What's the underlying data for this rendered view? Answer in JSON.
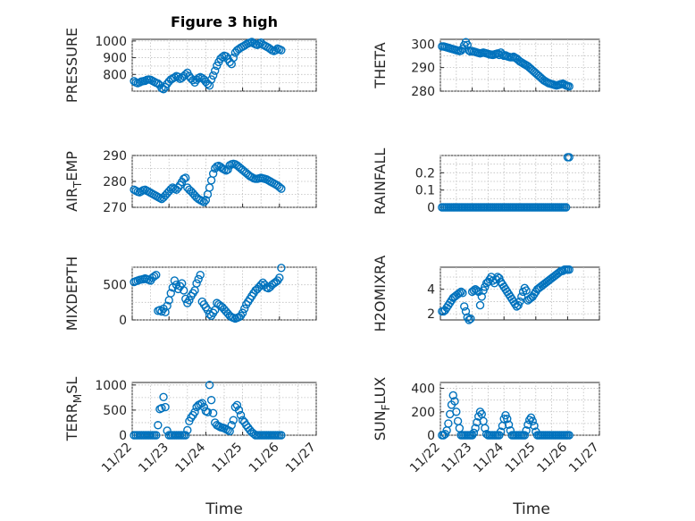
{
  "figure": {
    "title": "Figure 3 high"
  },
  "style": {
    "marker_color": "#0072BD",
    "axis_color": "#262626",
    "grid_color": "#bfbfbf"
  },
  "x_axis": {
    "label": "Time",
    "ticks": [
      0,
      1,
      2,
      3,
      4,
      5
    ],
    "tick_labels": [
      "11/22",
      "11/23",
      "11/24",
      "11/25",
      "11/26",
      "11/27"
    ],
    "range": [
      0,
      5
    ],
    "note_units": "days since 11/22"
  },
  "chart_data": [
    {
      "type": "scatter",
      "marker": "circle",
      "grid": true,
      "ylabel": "PRESSURE",
      "ylim": [
        700,
        1010
      ],
      "yticks": [
        800,
        900,
        1000
      ],
      "x": [
        0.05,
        0.1,
        0.15,
        0.2,
        0.25,
        0.3,
        0.35,
        0.4,
        0.45,
        0.5,
        0.55,
        0.6,
        0.65,
        0.7,
        0.75,
        0.8,
        0.85,
        0.9,
        0.95,
        1.0,
        1.05,
        1.1,
        1.15,
        1.2,
        1.25,
        1.3,
        1.35,
        1.4,
        1.45,
        1.5,
        1.55,
        1.6,
        1.65,
        1.7,
        1.75,
        1.8,
        1.85,
        1.9,
        1.95,
        2.0,
        2.05,
        2.1,
        2.15,
        2.2,
        2.25,
        2.3,
        2.35,
        2.4,
        2.45,
        2.5,
        2.55,
        2.6,
        2.65,
        2.7,
        2.75,
        2.8,
        2.85,
        2.9,
        2.95,
        3.0,
        3.05,
        3.1,
        3.15,
        3.2,
        3.25,
        3.3,
        3.35,
        3.4,
        3.45,
        3.5,
        3.55,
        3.6,
        3.65,
        3.7,
        3.75,
        3.8,
        3.85,
        3.9,
        3.95,
        4.0,
        4.05
      ],
      "y": [
        760,
        752,
        748,
        752,
        758,
        760,
        762,
        768,
        770,
        768,
        762,
        756,
        750,
        746,
        736,
        718,
        712,
        724,
        744,
        758,
        770,
        776,
        782,
        790,
        786,
        774,
        780,
        790,
        800,
        810,
        790,
        776,
        766,
        752,
        768,
        778,
        784,
        778,
        770,
        756,
        744,
        734,
        770,
        794,
        822,
        852,
        874,
        894,
        904,
        912,
        908,
        892,
        874,
        862,
        900,
        930,
        944,
        952,
        960,
        966,
        972,
        980,
        986,
        990,
        994,
        986,
        980,
        976,
        984,
        990,
        978,
        972,
        966,
        960,
        952,
        944,
        940,
        945,
        955,
        950,
        945
      ]
    },
    {
      "type": "scatter",
      "marker": "circle",
      "grid": true,
      "ylabel": "THETA",
      "ylim": [
        280,
        302
      ],
      "yticks": [
        280,
        290,
        300
      ],
      "x": [
        0.05,
        0.1,
        0.15,
        0.2,
        0.25,
        0.3,
        0.35,
        0.4,
        0.45,
        0.5,
        0.55,
        0.6,
        0.65,
        0.7,
        0.75,
        0.8,
        0.85,
        0.9,
        0.95,
        1.0,
        1.05,
        1.1,
        1.15,
        1.2,
        1.25,
        1.3,
        1.35,
        1.4,
        1.45,
        1.5,
        1.55,
        1.6,
        1.65,
        1.7,
        1.75,
        1.8,
        1.85,
        1.9,
        1.95,
        2.0,
        2.05,
        2.1,
        2.15,
        2.2,
        2.25,
        2.3,
        2.35,
        2.4,
        2.45,
        2.5,
        2.55,
        2.6,
        2.65,
        2.7,
        2.75,
        2.8,
        2.85,
        2.9,
        2.95,
        3.0,
        3.05,
        3.1,
        3.15,
        3.2,
        3.25,
        3.3,
        3.35,
        3.4,
        3.45,
        3.5,
        3.55,
        3.6,
        3.65,
        3.7,
        3.75,
        3.8,
        3.85,
        3.9,
        3.95,
        4.0,
        4.05
      ],
      "y": [
        299,
        299,
        298.8,
        298.6,
        298.4,
        298.2,
        298,
        297.8,
        297.6,
        297.4,
        297.2,
        297,
        297.2,
        298,
        299.5,
        300.8,
        299.6,
        297.2,
        296.8,
        297,
        296.8,
        296.6,
        296.4,
        296.2,
        296,
        296.2,
        296.4,
        296.2,
        296,
        295.8,
        295.6,
        295.5,
        295.4,
        295.6,
        295.8,
        296,
        295.4,
        296.4,
        295.6,
        295,
        295.2,
        294.8,
        294.6,
        294.4,
        294.4,
        294.6,
        294.2,
        293.8,
        293.2,
        292.6,
        292.2,
        291.8,
        291.4,
        291,
        290.6,
        290,
        289.4,
        288.8,
        288.2,
        287.6,
        287,
        286.4,
        285.8,
        285.2,
        284.6,
        284.2,
        283.8,
        283.4,
        283.2,
        283,
        282.8,
        282.6,
        282.4,
        282.6,
        282.8,
        283,
        283.2,
        282.8,
        282.4,
        282.2,
        282
      ]
    },
    {
      "type": "scatter",
      "marker": "circle",
      "grid": true,
      "ylabel": "AIR_TEMP",
      "ylabel_main": "AIR",
      "ylabel_sub": "T",
      "ylabel_rest": "EMP",
      "ylim": [
        270,
        290
      ],
      "yticks": [
        270,
        280,
        290
      ],
      "x": [
        0.05,
        0.1,
        0.15,
        0.2,
        0.25,
        0.3,
        0.35,
        0.4,
        0.45,
        0.5,
        0.55,
        0.6,
        0.65,
        0.7,
        0.75,
        0.8,
        0.85,
        0.9,
        0.95,
        1.0,
        1.05,
        1.1,
        1.15,
        1.2,
        1.25,
        1.3,
        1.35,
        1.4,
        1.45,
        1.5,
        1.55,
        1.6,
        1.65,
        1.7,
        1.75,
        1.8,
        1.85,
        1.9,
        1.95,
        2.0,
        2.05,
        2.1,
        2.15,
        2.2,
        2.25,
        2.3,
        2.35,
        2.4,
        2.45,
        2.5,
        2.55,
        2.6,
        2.65,
        2.7,
        2.75,
        2.8,
        2.85,
        2.9,
        2.95,
        3.0,
        3.05,
        3.1,
        3.15,
        3.2,
        3.25,
        3.3,
        3.35,
        3.4,
        3.45,
        3.5,
        3.55,
        3.6,
        3.65,
        3.7,
        3.75,
        3.8,
        3.85,
        3.9,
        3.95,
        4.0,
        4.05
      ],
      "y": [
        276.8,
        276.4,
        276,
        275.8,
        276.2,
        276.6,
        276.8,
        276.4,
        276,
        275.6,
        275.2,
        274.8,
        274.4,
        274,
        273.6,
        273.2,
        273.8,
        274.6,
        275.4,
        276.2,
        277,
        277.6,
        277.2,
        276.8,
        277.6,
        278.6,
        279.8,
        281,
        281.4,
        277.6,
        276.8,
        276.2,
        275.4,
        274.6,
        273.8,
        273.2,
        272.8,
        272.4,
        272,
        272.8,
        275,
        277.6,
        280.4,
        283,
        285,
        285.8,
        286,
        285.6,
        285,
        284.6,
        284.2,
        284.6,
        286.2,
        286.6,
        286.8,
        286.6,
        286.2,
        285.6,
        285,
        284.4,
        283.8,
        283.2,
        282.6,
        282,
        281.6,
        281.2,
        281,
        281,
        281.2,
        281.4,
        281.2,
        281,
        280.8,
        280.4,
        280,
        279.6,
        279.2,
        278.8,
        278.4,
        277.8,
        277.2
      ]
    },
    {
      "type": "scatter",
      "marker": "circle",
      "grid": true,
      "ylabel": "RAINFALL",
      "ylim": [
        0,
        0.3
      ],
      "yticks": [
        0,
        0.1,
        0.2
      ],
      "x": [
        0.05,
        0.1,
        0.15,
        0.2,
        0.25,
        0.3,
        0.35,
        0.4,
        0.45,
        0.5,
        0.55,
        0.6,
        0.65,
        0.7,
        0.75,
        0.8,
        0.85,
        0.9,
        0.95,
        1.0,
        1.05,
        1.1,
        1.15,
        1.2,
        1.25,
        1.3,
        1.35,
        1.4,
        1.45,
        1.5,
        1.55,
        1.6,
        1.65,
        1.7,
        1.75,
        1.8,
        1.85,
        1.9,
        1.95,
        2.0,
        2.05,
        2.1,
        2.15,
        2.2,
        2.25,
        2.3,
        2.35,
        2.4,
        2.45,
        2.5,
        2.55,
        2.6,
        2.65,
        2.7,
        2.75,
        2.8,
        2.85,
        2.9,
        2.95,
        3.0,
        3.05,
        3.1,
        3.15,
        3.2,
        3.25,
        3.3,
        3.35,
        3.4,
        3.45,
        3.5,
        3.55,
        3.6,
        3.65,
        3.7,
        3.75,
        3.8,
        3.85,
        3.9,
        3.95,
        4.0,
        4.05
      ],
      "y": [
        0,
        0,
        0,
        0,
        0,
        0,
        0,
        0,
        0,
        0,
        0,
        0,
        0,
        0,
        0,
        0,
        0,
        0,
        0,
        0,
        0,
        0,
        0,
        0,
        0,
        0,
        0,
        0,
        0,
        0,
        0,
        0,
        0,
        0,
        0,
        0,
        0,
        0,
        0,
        0,
        0,
        0,
        0,
        0,
        0,
        0,
        0,
        0,
        0,
        0,
        0,
        0,
        0,
        0,
        0,
        0,
        0,
        0,
        0,
        0,
        0,
        0,
        0,
        0,
        0,
        0,
        0,
        0,
        0,
        0,
        0,
        0,
        0,
        0,
        0,
        0,
        0,
        0,
        0,
        0.29,
        0.29
      ]
    },
    {
      "type": "scatter",
      "marker": "circle",
      "grid": true,
      "ylabel": "MIXDEPTH",
      "ylim": [
        0,
        750
      ],
      "yticks": [
        0,
        500
      ],
      "x": [
        0.05,
        0.1,
        0.15,
        0.2,
        0.25,
        0.3,
        0.35,
        0.4,
        0.45,
        0.5,
        0.55,
        0.6,
        0.65,
        0.7,
        0.75,
        0.8,
        0.85,
        0.9,
        0.95,
        1.0,
        1.05,
        1.1,
        1.15,
        1.2,
        1.25,
        1.3,
        1.35,
        1.4,
        1.45,
        1.5,
        1.55,
        1.6,
        1.65,
        1.7,
        1.75,
        1.8,
        1.85,
        1.9,
        1.95,
        2.0,
        2.05,
        2.1,
        2.15,
        2.2,
        2.25,
        2.3,
        2.35,
        2.4,
        2.45,
        2.5,
        2.55,
        2.6,
        2.65,
        2.7,
        2.75,
        2.8,
        2.85,
        2.9,
        2.95,
        3.0,
        3.05,
        3.1,
        3.15,
        3.2,
        3.25,
        3.3,
        3.35,
        3.4,
        3.45,
        3.5,
        3.55,
        3.6,
        3.65,
        3.7,
        3.75,
        3.8,
        3.85,
        3.9,
        3.95,
        4.0,
        4.05
      ],
      "y": [
        540,
        550,
        560,
        570,
        575,
        580,
        590,
        580,
        570,
        560,
        600,
        620,
        640,
        130,
        140,
        120,
        160,
        110,
        200,
        280,
        380,
        460,
        560,
        500,
        440,
        480,
        520,
        420,
        300,
        240,
        280,
        340,
        380,
        420,
        520,
        580,
        640,
        260,
        220,
        180,
        140,
        80,
        60,
        100,
        140,
        240,
        220,
        200,
        180,
        150,
        120,
        90,
        60,
        40,
        30,
        20,
        30,
        40,
        60,
        100,
        160,
        220,
        260,
        300,
        340,
        380,
        420,
        440,
        470,
        500,
        530,
        500,
        460,
        450,
        470,
        500,
        520,
        540,
        560,
        600,
        740
      ]
    },
    {
      "type": "scatter",
      "marker": "circle",
      "grid": true,
      "ylabel": "H2OMIXRA",
      "ylim": [
        1.5,
        5.8
      ],
      "yticks": [
        2,
        4
      ],
      "x": [
        0.05,
        0.1,
        0.15,
        0.2,
        0.25,
        0.3,
        0.35,
        0.4,
        0.45,
        0.5,
        0.55,
        0.6,
        0.65,
        0.7,
        0.75,
        0.8,
        0.85,
        0.9,
        0.95,
        1.0,
        1.05,
        1.1,
        1.15,
        1.2,
        1.25,
        1.3,
        1.35,
        1.4,
        1.45,
        1.5,
        1.55,
        1.6,
        1.65,
        1.7,
        1.75,
        1.8,
        1.85,
        1.9,
        1.95,
        2.0,
        2.05,
        2.1,
        2.15,
        2.2,
        2.25,
        2.3,
        2.35,
        2.4,
        2.45,
        2.5,
        2.55,
        2.6,
        2.65,
        2.7,
        2.75,
        2.8,
        2.85,
        2.9,
        2.95,
        3.0,
        3.05,
        3.1,
        3.15,
        3.2,
        3.25,
        3.3,
        3.35,
        3.4,
        3.45,
        3.5,
        3.55,
        3.6,
        3.65,
        3.7,
        3.75,
        3.8,
        3.85,
        3.9,
        3.95,
        4.0,
        4.05
      ],
      "y": [
        2.2,
        2.2,
        2.3,
        2.5,
        2.7,
        2.9,
        3.1,
        3.3,
        3.4,
        3.5,
        3.6,
        3.7,
        3.8,
        3.7,
        2.6,
        2.2,
        1.7,
        1.5,
        1.6,
        3.8,
        3.9,
        4.0,
        3.9,
        3.8,
        2.7,
        3.4,
        3.9,
        4.2,
        4.5,
        4.6,
        4.8,
        5.0,
        4.7,
        4.5,
        4.8,
        5.0,
        4.9,
        4.6,
        4.4,
        4.2,
        4.0,
        3.8,
        3.6,
        3.4,
        3.2,
        3.0,
        2.8,
        2.6,
        2.7,
        3.0,
        3.4,
        3.8,
        4.1,
        3.9,
        3.1,
        3.2,
        3.3,
        3.4,
        3.6,
        3.8,
        4.0,
        4.1,
        4.2,
        4.3,
        4.4,
        4.5,
        4.6,
        4.7,
        4.8,
        4.9,
        5.0,
        5.1,
        5.2,
        5.3,
        5.4,
        5.5,
        5.5,
        5.6,
        5.6,
        5.6,
        5.6
      ]
    },
    {
      "type": "scatter",
      "marker": "circle",
      "grid": true,
      "ylabel": "TERR_MSL",
      "ylabel_main": "TERR",
      "ylabel_sub": "M",
      "ylabel_rest": "SL",
      "ylim": [
        0,
        1050
      ],
      "yticks": [
        0,
        500,
        1000
      ],
      "x": [
        0.05,
        0.1,
        0.15,
        0.2,
        0.25,
        0.3,
        0.35,
        0.4,
        0.45,
        0.5,
        0.55,
        0.6,
        0.65,
        0.7,
        0.75,
        0.8,
        0.85,
        0.9,
        0.95,
        1.0,
        1.05,
        1.1,
        1.15,
        1.2,
        1.25,
        1.3,
        1.35,
        1.4,
        1.45,
        1.5,
        1.55,
        1.6,
        1.65,
        1.7,
        1.75,
        1.8,
        1.85,
        1.9,
        1.95,
        2.0,
        2.05,
        2.1,
        2.15,
        2.2,
        2.25,
        2.3,
        2.35,
        2.4,
        2.45,
        2.5,
        2.55,
        2.6,
        2.65,
        2.7,
        2.75,
        2.8,
        2.85,
        2.9,
        2.95,
        3.0,
        3.05,
        3.1,
        3.15,
        3.2,
        3.25,
        3.3,
        3.35,
        3.4,
        3.45,
        3.5,
        3.55,
        3.6,
        3.65,
        3.7,
        3.75,
        3.8,
        3.85,
        3.9,
        3.95,
        4.0,
        4.05
      ],
      "y": [
        0,
        0,
        0,
        0,
        0,
        0,
        0,
        0,
        0,
        0,
        0,
        0,
        0,
        200,
        520,
        540,
        760,
        560,
        90,
        0,
        0,
        0,
        0,
        0,
        0,
        0,
        0,
        0,
        0,
        100,
        280,
        350,
        400,
        460,
        560,
        600,
        620,
        640,
        560,
        480,
        460,
        1000,
        700,
        440,
        250,
        200,
        180,
        160,
        150,
        140,
        120,
        100,
        80,
        200,
        300,
        560,
        600,
        500,
        400,
        300,
        260,
        200,
        150,
        100,
        60,
        30,
        0,
        0,
        0,
        0,
        0,
        0,
        0,
        0,
        0,
        0,
        0,
        0,
        0,
        0,
        0
      ]
    },
    {
      "type": "scatter",
      "marker": "circle",
      "grid": true,
      "ylabel": "SUN_FLUX",
      "ylabel_main": "SUN",
      "ylabel_sub": "F",
      "ylabel_rest": "LUX",
      "ylim": [
        0,
        450
      ],
      "yticks": [
        0,
        200,
        400
      ],
      "x": [
        0.05,
        0.1,
        0.15,
        0.2,
        0.25,
        0.3,
        0.35,
        0.4,
        0.45,
        0.5,
        0.55,
        0.6,
        0.65,
        0.7,
        0.75,
        0.8,
        0.85,
        0.9,
        0.95,
        1.0,
        1.05,
        1.1,
        1.15,
        1.2,
        1.25,
        1.3,
        1.35,
        1.4,
        1.45,
        1.5,
        1.55,
        1.6,
        1.65,
        1.7,
        1.75,
        1.8,
        1.85,
        1.9,
        1.95,
        2.0,
        2.05,
        2.1,
        2.15,
        2.2,
        2.25,
        2.3,
        2.35,
        2.4,
        2.45,
        2.5,
        2.55,
        2.6,
        2.65,
        2.7,
        2.75,
        2.8,
        2.85,
        2.9,
        2.95,
        3.0,
        3.05,
        3.1,
        3.15,
        3.2,
        3.25,
        3.3,
        3.35,
        3.4,
        3.45,
        3.5,
        3.55,
        3.6,
        3.65,
        3.7,
        3.75,
        3.8,
        3.85,
        3.9,
        3.95,
        4.0,
        4.05
      ],
      "y": [
        0,
        0,
        10,
        40,
        100,
        180,
        260,
        340,
        290,
        200,
        120,
        60,
        0,
        0,
        0,
        0,
        0,
        0,
        0,
        0,
        20,
        60,
        110,
        160,
        200,
        180,
        120,
        60,
        10,
        0,
        0,
        0,
        0,
        0,
        0,
        0,
        0,
        30,
        80,
        140,
        170,
        140,
        90,
        40,
        0,
        0,
        0,
        0,
        0,
        0,
        0,
        0,
        0,
        40,
        90,
        130,
        150,
        120,
        80,
        30,
        0,
        0,
        0,
        0,
        0,
        0,
        0,
        0,
        0,
        0,
        0,
        0,
        0,
        0,
        0,
        0,
        0,
        0,
        0,
        0,
        0
      ]
    }
  ]
}
